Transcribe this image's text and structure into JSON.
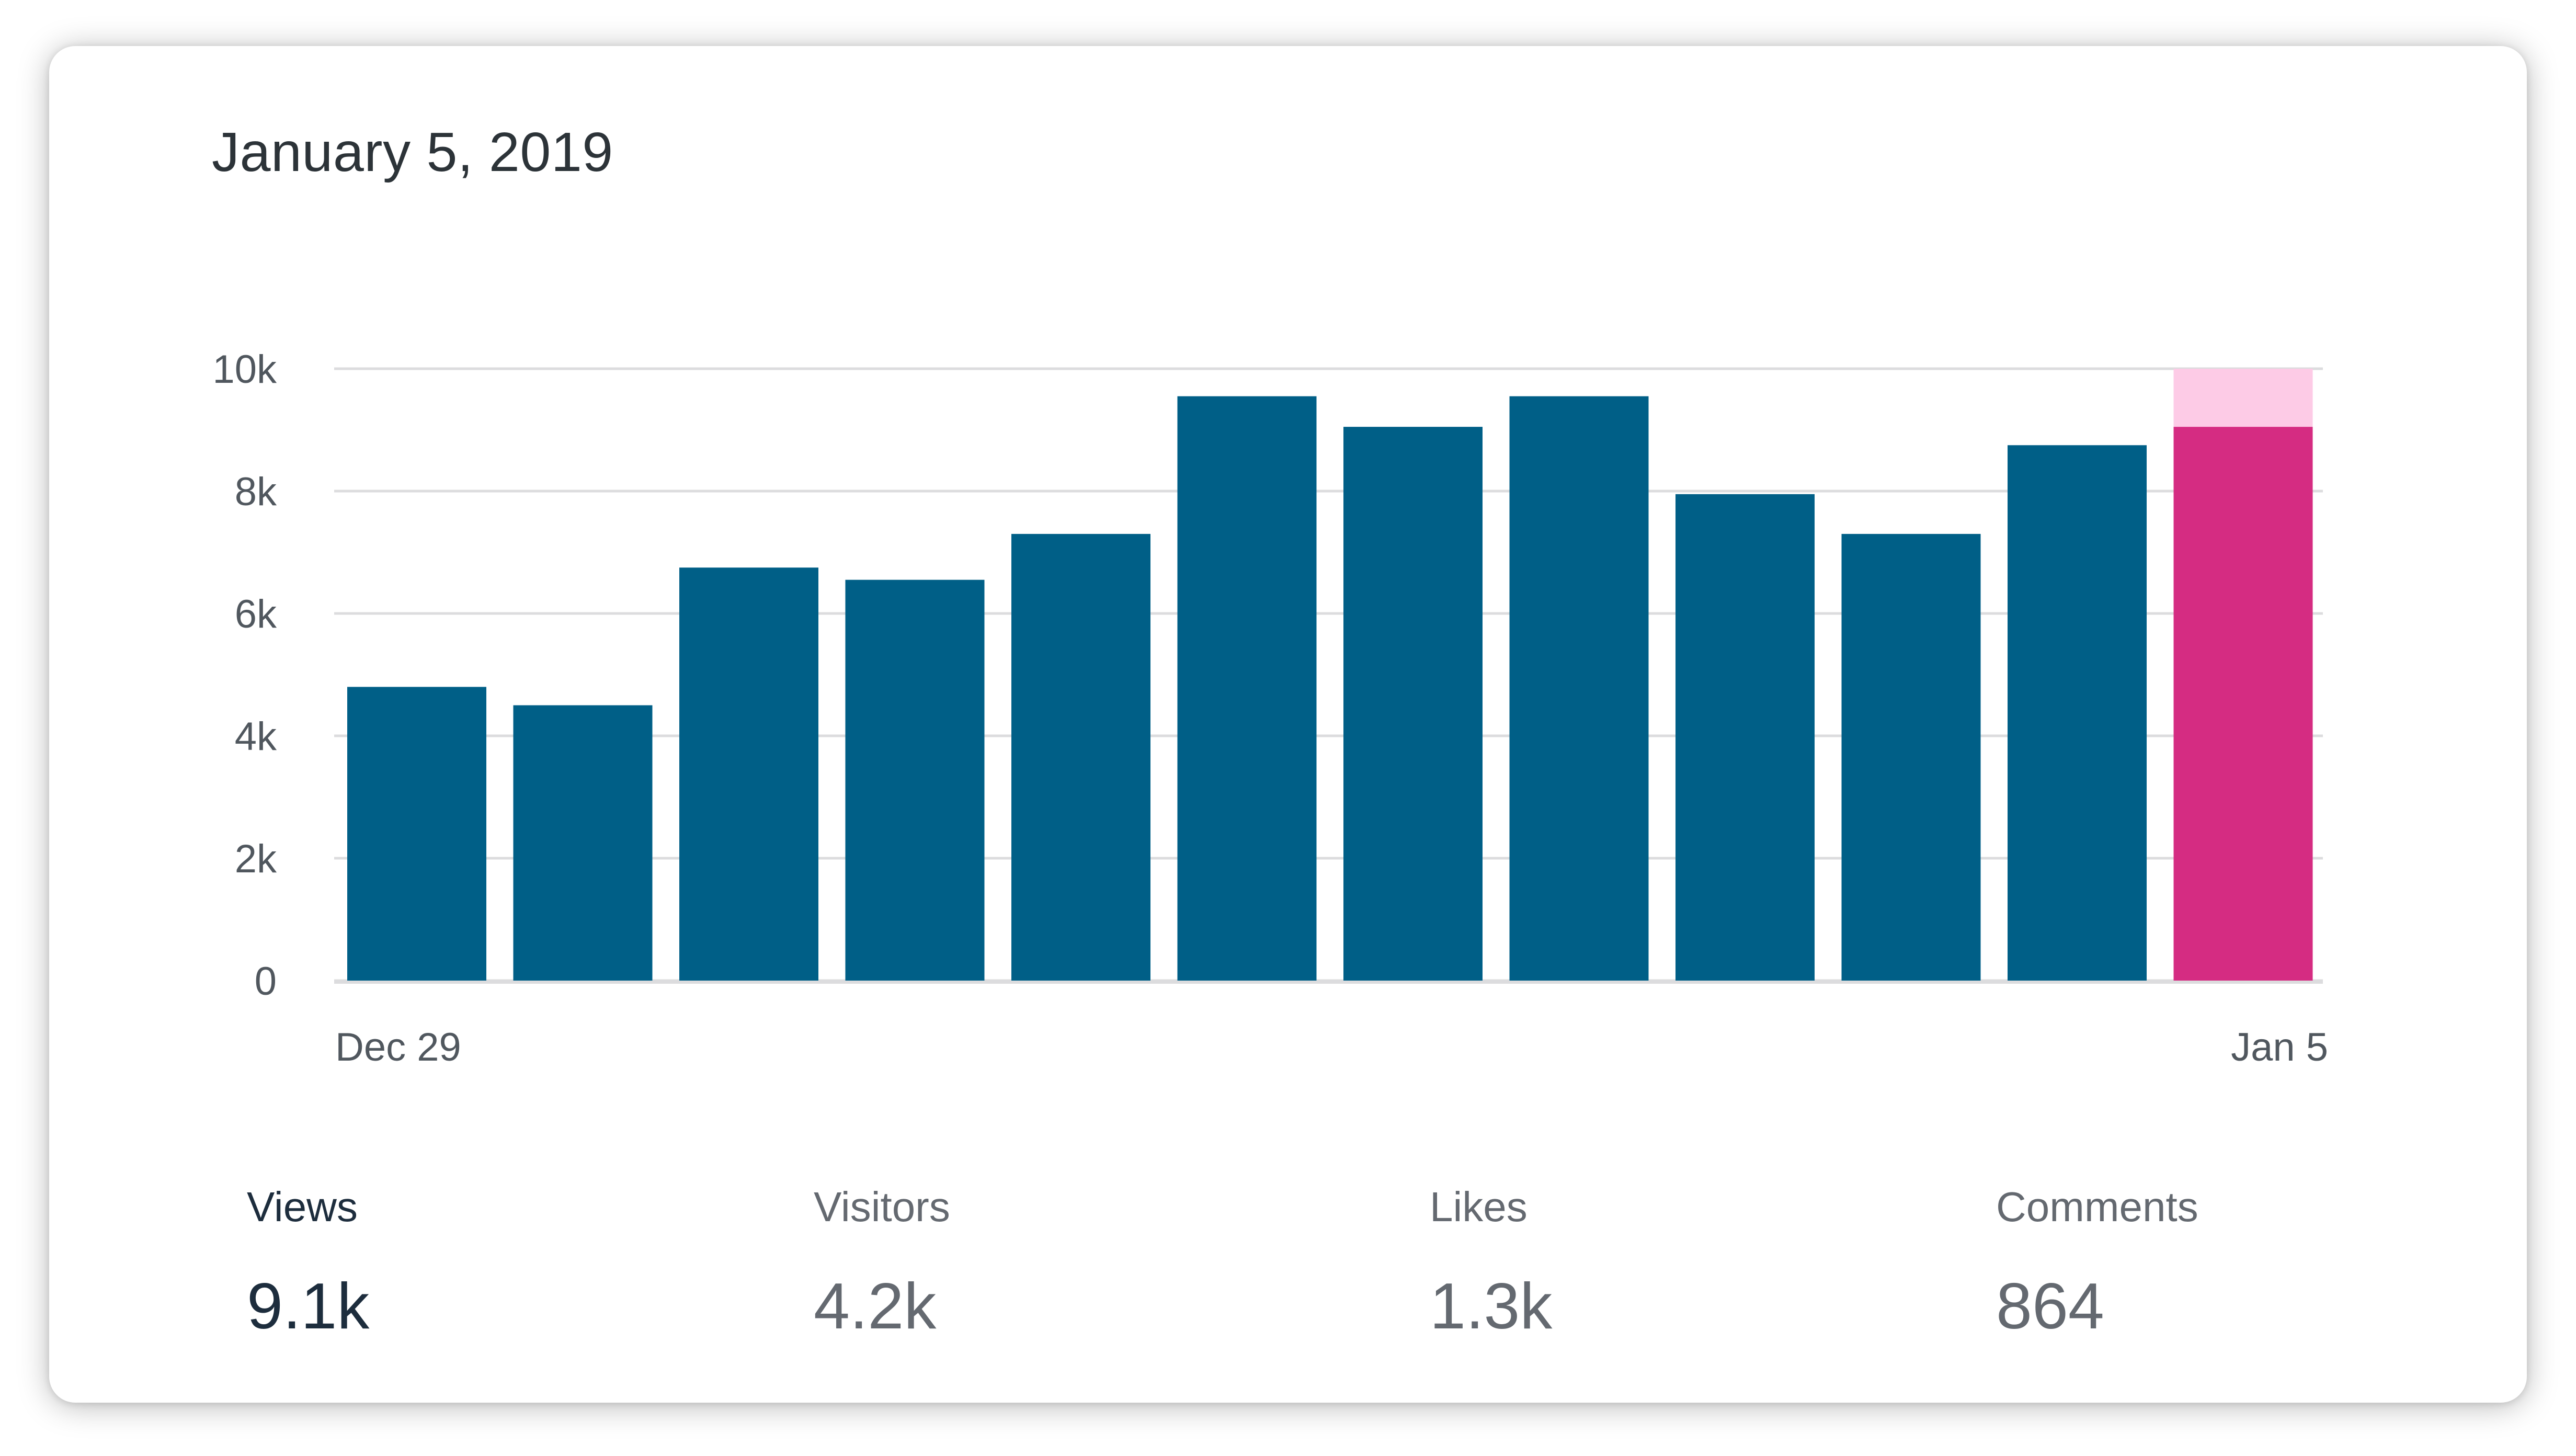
{
  "header": {
    "date": "January 5, 2019"
  },
  "colors": {
    "bar": "#005f87",
    "bar_selected": "#d52c82",
    "bar_selected_remainder": "#fdcbe6",
    "grid": "#dcdcde",
    "axis_text": "#50575e"
  },
  "chart_data": {
    "type": "bar",
    "categories": [
      "Dec 29",
      "",
      "",
      "",
      "",
      "",
      "",
      "",
      "",
      "",
      "",
      "Jan 5"
    ],
    "values": [
      4800,
      4500,
      6750,
      6550,
      7300,
      9550,
      9050,
      9550,
      7950,
      7300,
      8750,
      9050
    ],
    "selected_index": 11,
    "selected_remainder_value": 950,
    "x_tick_labels": [
      "Dec 29",
      "Jan 5"
    ],
    "y_ticks": [
      0,
      2000,
      4000,
      6000,
      8000,
      10000
    ],
    "y_tick_labels": [
      "0",
      "2k",
      "4k",
      "6k",
      "8k",
      "10k"
    ],
    "ylim": [
      0,
      10000
    ],
    "grid": true
  },
  "stats": [
    {
      "label": "Views",
      "value": "9.1k",
      "active": true
    },
    {
      "label": "Visitors",
      "value": "4.2k",
      "active": false
    },
    {
      "label": "Likes",
      "value": "1.3k",
      "active": false
    },
    {
      "label": "Comments",
      "value": "864",
      "active": false
    }
  ]
}
